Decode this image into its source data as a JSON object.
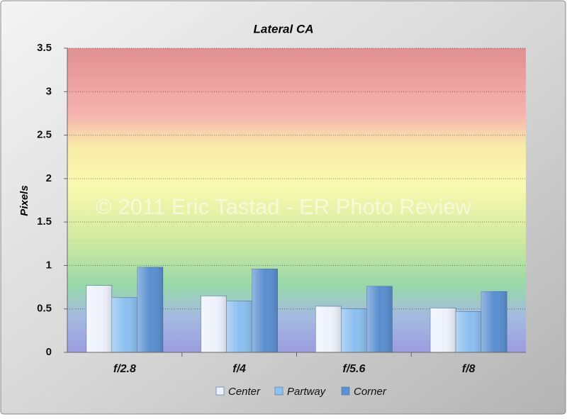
{
  "chart_data": {
    "type": "bar",
    "title": "Lateral CA",
    "y_label": "Pixels",
    "annotation": "© 2011 Eric Tastad - ER Photo Review",
    "categories": [
      "f/2.8",
      "f/4",
      "f/5.6",
      "f/8"
    ],
    "series": [
      {
        "name": "Center",
        "color": "#eef2fc",
        "values": [
          0.77,
          0.65,
          0.53,
          0.51
        ]
      },
      {
        "name": "Partway",
        "color": "#8cc0f0",
        "values": [
          0.63,
          0.59,
          0.5,
          0.47
        ]
      },
      {
        "name": "Corner",
        "color": "#5a8fd0",
        "values": [
          0.98,
          0.96,
          0.76,
          0.7
        ]
      }
    ],
    "ylim": [
      0,
      3.5
    ],
    "yticks": [
      0,
      0.5,
      1,
      1.5,
      2,
      2.5,
      3,
      3.5
    ],
    "grid": true,
    "legend": "bottom"
  }
}
